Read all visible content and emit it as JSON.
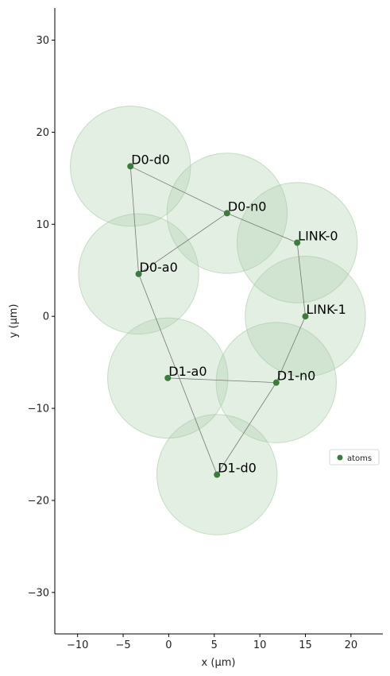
{
  "chart_data": {
    "type": "scatter",
    "xlabel": "x (µm)",
    "ylabel": "y (µm)",
    "xlim": [
      -12.5,
      23.5
    ],
    "ylim": [
      -34.5,
      33.5
    ],
    "xticks": [
      -10,
      -5,
      0,
      5,
      10,
      15,
      20
    ],
    "yticks": [
      -30,
      -20,
      -10,
      0,
      10,
      20,
      30
    ],
    "tick_labels_x": [
      "−10",
      "−5",
      "0",
      "5",
      "10",
      "15",
      "20"
    ],
    "tick_labels_y": [
      "−30",
      "−20",
      "−10",
      "0",
      "10",
      "20",
      "30"
    ],
    "blockade_radius": 6.6,
    "grid": false,
    "legend_position": "right",
    "atom_color": "#3a7d3a",
    "circle_color": "#a5c9a5",
    "series": [
      {
        "name": "atoms",
        "points": [
          {
            "label": "D0-d0",
            "x": -4.2,
            "y": 16.3
          },
          {
            "label": "D0-n0",
            "x": 6.4,
            "y": 11.2
          },
          {
            "label": "D0-a0",
            "x": -3.3,
            "y": 4.6
          },
          {
            "label": "LINK-0",
            "x": 14.1,
            "y": 8.0
          },
          {
            "label": "LINK-1",
            "x": 15.0,
            "y": 0.0
          },
          {
            "label": "D1-a0",
            "x": -0.1,
            "y": -6.7
          },
          {
            "label": "D1-n0",
            "x": 11.8,
            "y": -7.2
          },
          {
            "label": "D1-d0",
            "x": 5.3,
            "y": -17.2
          }
        ]
      }
    ],
    "edges": [
      [
        "D0-d0",
        "D0-n0"
      ],
      [
        "D0-d0",
        "D0-a0"
      ],
      [
        "D0-n0",
        "D0-a0"
      ],
      [
        "D0-n0",
        "LINK-0"
      ],
      [
        "LINK-0",
        "LINK-1"
      ],
      [
        "LINK-1",
        "D1-n0"
      ],
      [
        "D0-a0",
        "D1-d0"
      ],
      [
        "D1-a0",
        "D1-n0"
      ],
      [
        "D1-n0",
        "D1-d0"
      ]
    ]
  }
}
